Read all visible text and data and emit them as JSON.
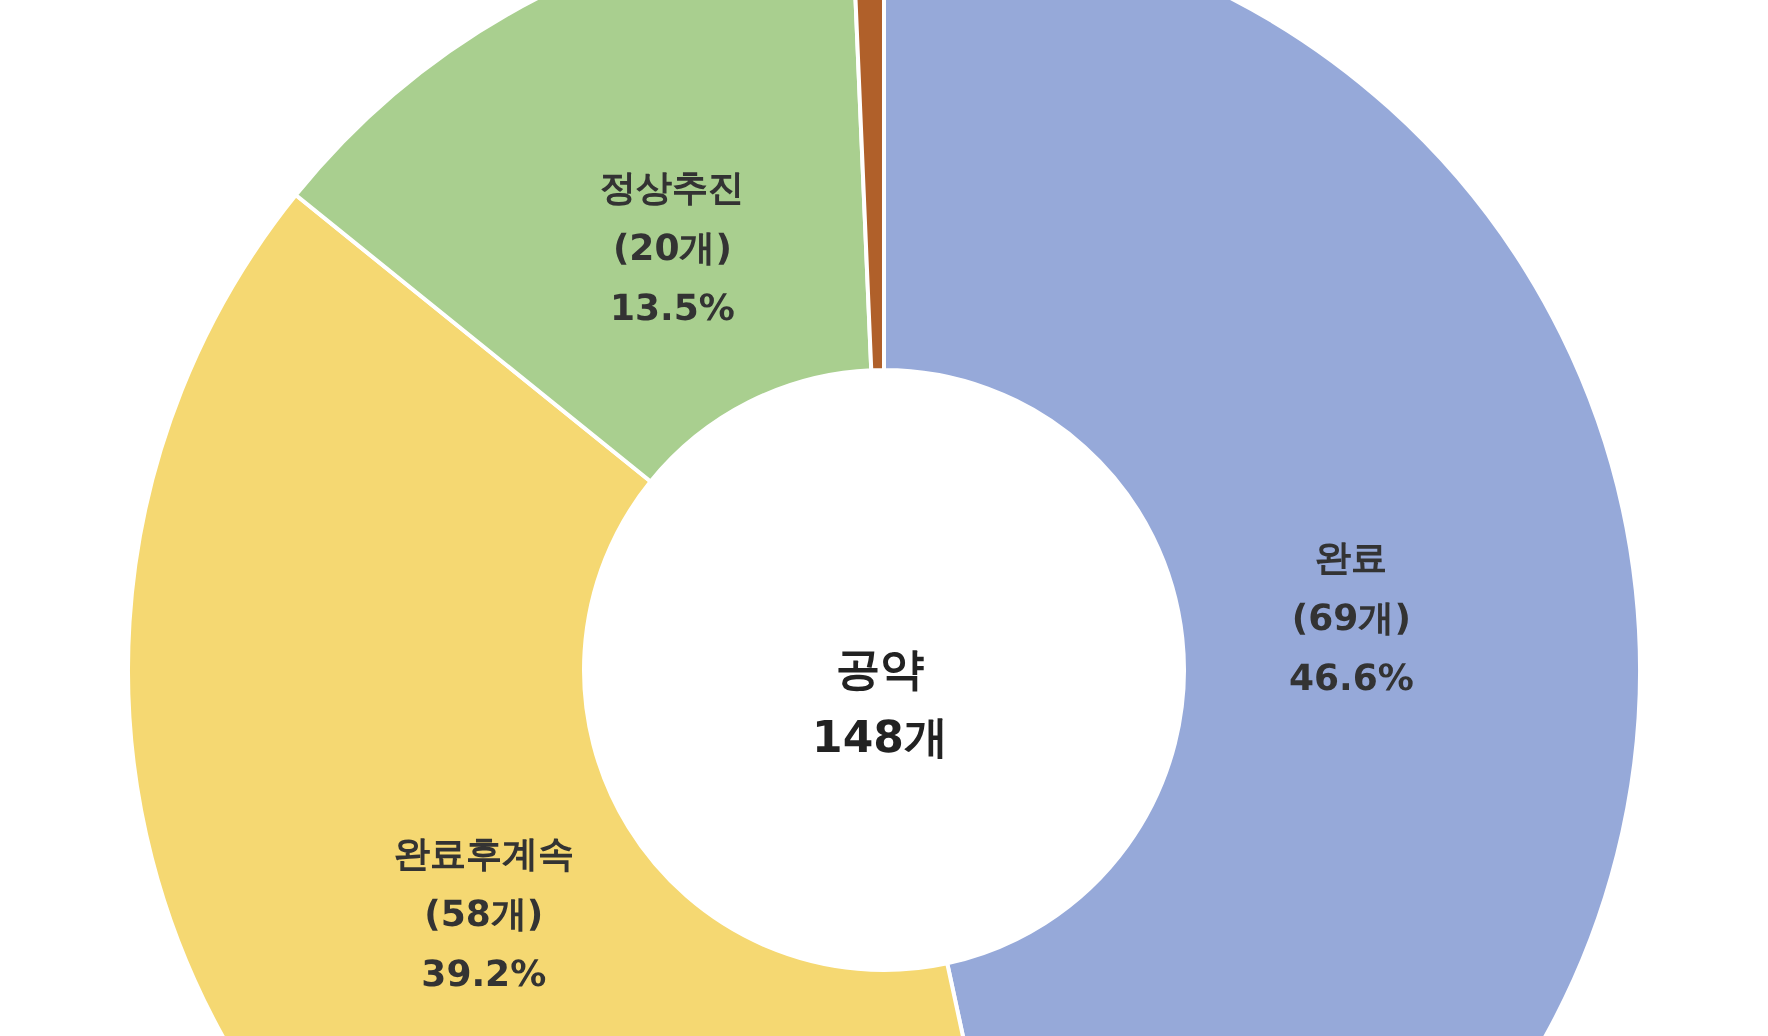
{
  "chart_data": {
    "type": "donut",
    "categories": [
      "완료",
      "완료후계속",
      "정상추진",
      null
    ],
    "values": [
      69,
      58,
      20,
      1
    ],
    "colors": [
      "#96a9d9",
      "#f5d872",
      "#a9cf8f",
      "#b0602a"
    ],
    "value_labels": [
      "(69개)\n46.6%",
      "(58개)\n39.2%",
      "(20개)\n13.5%",
      null
    ],
    "annotations": [
      "공약\n148개"
    ]
  }
}
